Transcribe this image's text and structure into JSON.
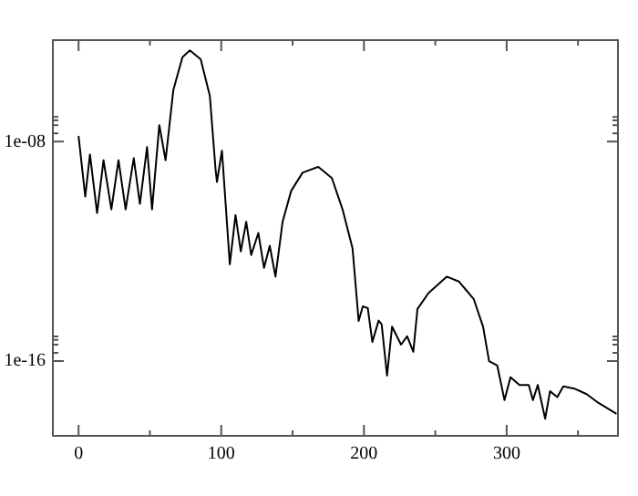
{
  "chart_data": {
    "type": "line",
    "color": "#000000",
    "log": "y",
    "grid": false,
    "legend": false,
    "marker": "none",
    "line_style": "solid",
    "xlim": [
      -18,
      378
    ],
    "xticks": [
      0,
      {
        "value": 50,
        "label": null
      },
      100,
      {
        "value": 150,
        "label": null
      },
      200,
      {
        "value": 250,
        "label": null
      },
      300,
      {
        "value": 350,
        "label": null
      }
    ],
    "ylim": [
      1.9e-19,
      5e-05
    ],
    "yticks": [
      {
        "value": 1e-16,
        "label": "1e-16"
      },
      {
        "value": 2e-16,
        "label": null
      },
      {
        "value": 4e-16,
        "label": null
      },
      {
        "value": 6e-16,
        "label": null
      },
      {
        "value": 8e-16,
        "label": null
      },
      {
        "value": 1e-08,
        "label": "1e-08"
      },
      {
        "value": 2e-08,
        "label": null
      },
      {
        "value": 4e-08,
        "label": null
      },
      {
        "value": 6e-08,
        "label": null
      },
      {
        "value": 8e-08,
        "label": null
      }
    ],
    "x": [
      0,
      4.7,
      8,
      13,
      17.5,
      23,
      28,
      33,
      38.7,
      43,
      48,
      51.5,
      56.6,
      61,
      66.4,
      72.8,
      78,
      85.6,
      92,
      96,
      97,
      100.5,
      106,
      110,
      113.7,
      117.5,
      121,
      126,
      130,
      134,
      138,
      143,
      149,
      157,
      168,
      177.5,
      185,
      192,
      196.3,
      199.2,
      202.7,
      205.9,
      210.3,
      212.4,
      216.2,
      219.7,
      226,
      230.3,
      234.6,
      237.5,
      245.2,
      258,
      266.5,
      277,
      283.5,
      287.7,
      293.4,
      298.5,
      302.7,
      309,
      315.5,
      318.4,
      321.8,
      327,
      330.4,
      335.5,
      339.7,
      347.4,
      356,
      364.4,
      377
    ],
    "values": [
      1.6e-08,
      1e-10,
      3.4e-09,
      2.5e-11,
      2.1e-09,
      3.4e-11,
      2.1e-09,
      3.4e-11,
      2.5e-09,
      5.4e-11,
      6.3e-09,
      3.4e-11,
      4e-08,
      2.1e-09,
      7.4e-07,
      1.2e-05,
      2.1e-05,
      1e-05,
      4.7e-07,
      1e-09,
      3.4e-10,
      4.7e-09,
      3.4e-13,
      2.1e-11,
      1e-12,
      1.2e-11,
      7.4e-13,
      4.7e-12,
      2.5e-13,
      1.6e-12,
      1.2e-13,
      1.2e-11,
      1.6e-10,
      7.4e-10,
      1.2e-09,
      4.7e-10,
      3.4e-11,
      1.3e-12,
      2.9e-15,
      1e-14,
      8.5e-15,
      5e-16,
      3e-15,
      2.2e-15,
      3e-17,
      1.8e-15,
      4e-16,
      8e-16,
      2.2e-16,
      8e-15,
      3e-14,
      1.2e-13,
      8e-14,
      1.8e-14,
      1.8e-15,
      1e-16,
      7e-17,
      3.8e-18,
      2.6e-17,
      1.35e-17,
      1.35e-17,
      3.8e-18,
      1.35e-17,
      8e-19,
      8e-18,
      4.9e-18,
      1.2e-17,
      1e-17,
      6.3e-18,
      3e-18,
      1.2e-18
    ]
  }
}
